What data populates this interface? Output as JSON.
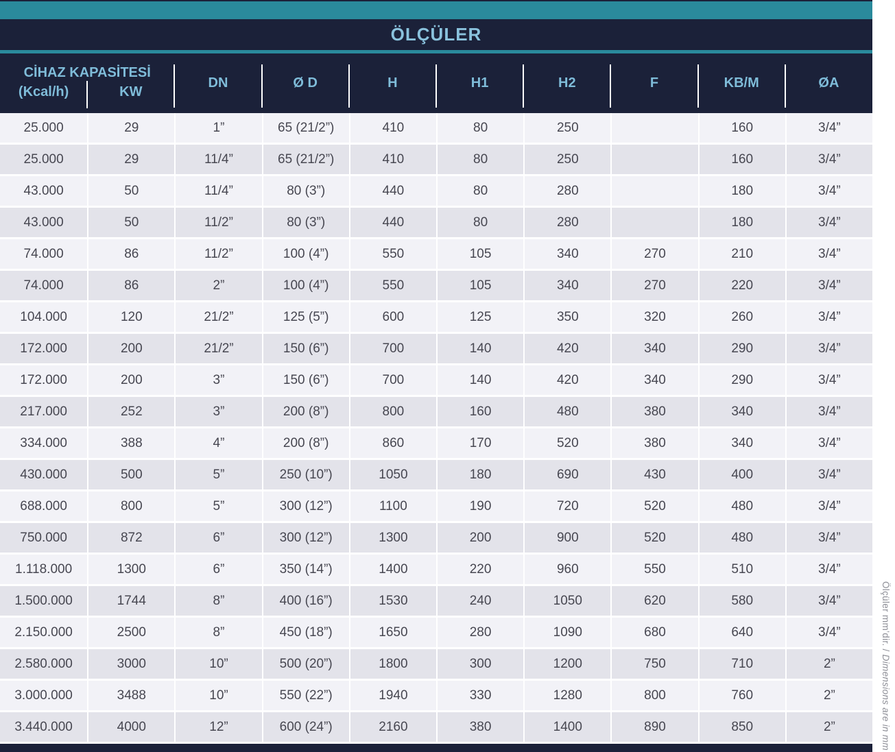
{
  "title": "ÖLÇÜLER",
  "note": {
    "turkish": "Ölçüler mm’dir. / ",
    "english": "Dimensions are in mm"
  },
  "colors": {
    "teal_accent": "#2a8a9c",
    "navy": "#1b2139",
    "header_text": "#7fbcd9",
    "row_light": "#f2f2f7",
    "row_dark": "#e3e3ea",
    "cell_text": "#474751"
  },
  "header": {
    "group_label": "CİHAZ KAPASİTESİ",
    "sub_columns": [
      "(Kcal/h)",
      "KW"
    ],
    "columns": [
      "DN",
      "Ø D",
      "H",
      "H1",
      "H2",
      "F",
      "KB/M",
      "ØA"
    ]
  },
  "rows": [
    [
      "25.000",
      "29",
      "1”",
      "65 (21/2”)",
      "410",
      "80",
      "250",
      "",
      "160",
      "3/4”"
    ],
    [
      "25.000",
      "29",
      "11/4”",
      "65 (21/2”)",
      "410",
      "80",
      "250",
      "",
      "160",
      "3/4”"
    ],
    [
      "43.000",
      "50",
      "11/4”",
      "80 (3”)",
      "440",
      "80",
      "280",
      "",
      "180",
      "3/4”"
    ],
    [
      "43.000",
      "50",
      "11/2”",
      "80 (3”)",
      "440",
      "80",
      "280",
      "",
      "180",
      "3/4”"
    ],
    [
      "74.000",
      "86",
      "11/2”",
      "100 (4”)",
      "550",
      "105",
      "340",
      "270",
      "210",
      "3/4”"
    ],
    [
      "74.000",
      "86",
      "2”",
      "100 (4”)",
      "550",
      "105",
      "340",
      "270",
      "220",
      "3/4”"
    ],
    [
      "104.000",
      "120",
      "21/2”",
      "125 (5”)",
      "600",
      "125",
      "350",
      "320",
      "260",
      "3/4”"
    ],
    [
      "172.000",
      "200",
      "21/2”",
      "150 (6”)",
      "700",
      "140",
      "420",
      "340",
      "290",
      "3/4”"
    ],
    [
      "172.000",
      "200",
      "3”",
      "150 (6”)",
      "700",
      "140",
      "420",
      "340",
      "290",
      "3/4”"
    ],
    [
      "217.000",
      "252",
      "3”",
      "200 (8”)",
      "800",
      "160",
      "480",
      "380",
      "340",
      "3/4”"
    ],
    [
      "334.000",
      "388",
      "4”",
      "200 (8”)",
      "860",
      "170",
      "520",
      "380",
      "340",
      "3/4”"
    ],
    [
      "430.000",
      "500",
      "5”",
      "250 (10”)",
      "1050",
      "180",
      "690",
      "430",
      "400",
      "3/4”"
    ],
    [
      "688.000",
      "800",
      "5”",
      "300 (12”)",
      "1100",
      "190",
      "720",
      "520",
      "480",
      "3/4”"
    ],
    [
      "750.000",
      "872",
      "6”",
      "300 (12”)",
      "1300",
      "200",
      "900",
      "520",
      "480",
      "3/4”"
    ],
    [
      "1.118.000",
      "1300",
      "6”",
      "350 (14”)",
      "1400",
      "220",
      "960",
      "550",
      "510",
      "3/4”"
    ],
    [
      "1.500.000",
      "1744",
      "8”",
      "400 (16”)",
      "1530",
      "240",
      "1050",
      "620",
      "580",
      "3/4”"
    ],
    [
      "2.150.000",
      "2500",
      "8”",
      "450 (18”)",
      "1650",
      "280",
      "1090",
      "680",
      "640",
      "3/4”"
    ],
    [
      "2.580.000",
      "3000",
      "10”",
      "500 (20”)",
      "1800",
      "300",
      "1200",
      "750",
      "710",
      "2”"
    ],
    [
      "3.000.000",
      "3488",
      "10”",
      "550 (22”)",
      "1940",
      "330",
      "1280",
      "800",
      "760",
      "2”"
    ],
    [
      "3.440.000",
      "4000",
      "12”",
      "600 (24”)",
      "2160",
      "380",
      "1400",
      "890",
      "850",
      "2”"
    ]
  ],
  "cell_names": [
    "cell-kcal",
    "cell-kw",
    "cell-dn",
    "cell-od",
    "cell-h",
    "cell-h1",
    "cell-h2",
    "cell-f",
    "cell-kbm",
    "cell-oa"
  ]
}
